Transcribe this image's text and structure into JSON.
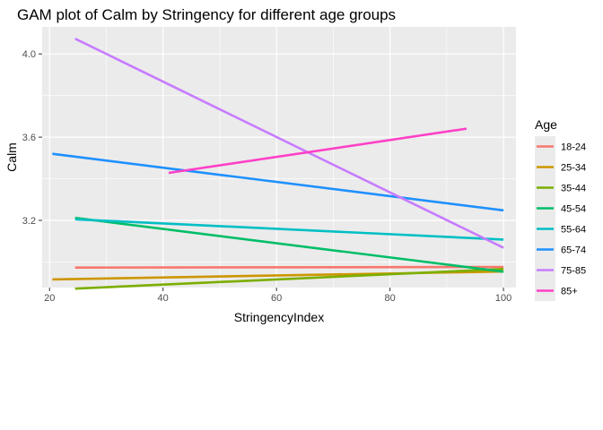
{
  "chart_data": {
    "type": "line",
    "title": "GAM plot of Calm by Stringency for different age groups",
    "xlabel": "StringencyIndex",
    "ylabel": "Calm",
    "xlim": [
      18.7,
      102.2
    ],
    "ylim": [
      2.877,
      4.13
    ],
    "xticks": [
      20,
      40,
      60,
      80,
      100
    ],
    "xtick_labels": [
      "20",
      "40",
      "60",
      "80",
      "100"
    ],
    "yticks": [
      3.2,
      3.6,
      4.0
    ],
    "ytick_labels": [
      "3.2",
      "3.6",
      "4.0"
    ],
    "grid": true,
    "legend": {
      "title": "Age",
      "position": "right"
    },
    "series": [
      {
        "name": "18-24",
        "color": "#F8766D",
        "x": [
          24.5,
          100
        ],
        "y": [
          2.973,
          2.976
        ]
      },
      {
        "name": "25-34",
        "color": "#CD9600",
        "x": [
          20.5,
          100
        ],
        "y": [
          2.916,
          2.954
        ]
      },
      {
        "name": "35-44",
        "color": "#7CAE00",
        "x": [
          24.5,
          100
        ],
        "y": [
          2.872,
          2.966
        ]
      },
      {
        "name": "45-54",
        "color": "#00BE67",
        "x": [
          24.5,
          100
        ],
        "y": [
          3.212,
          2.953
        ]
      },
      {
        "name": "55-64",
        "color": "#00BFC4",
        "x": [
          24.5,
          100
        ],
        "y": [
          3.205,
          3.108
        ]
      },
      {
        "name": "65-74",
        "color": "#1E90FF",
        "x": [
          20.5,
          100
        ],
        "y": [
          3.52,
          3.248
        ]
      },
      {
        "name": "75-85",
        "color": "#C77CFF",
        "x": [
          24.5,
          100
        ],
        "y": [
          4.073,
          3.068
        ]
      },
      {
        "name": "85+",
        "color": "#FF40C8",
        "x": [
          41,
          93.5
        ],
        "y": [
          3.428,
          3.641
        ]
      }
    ]
  }
}
